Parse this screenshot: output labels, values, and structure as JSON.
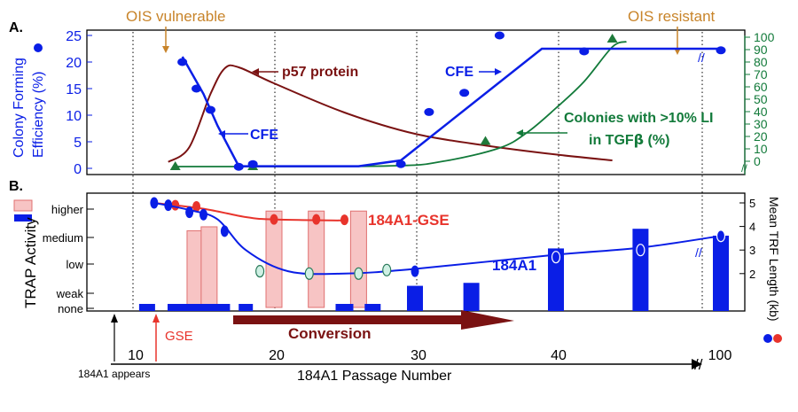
{
  "colors": {
    "blue": "#0a1ee6",
    "red": "#e8342c",
    "pink_fill": "#f7c4c4",
    "pink_edge": "#e07070",
    "dark_red": "#7a1212",
    "green": "#127a3a",
    "orange": "#c8842a",
    "pale_cyan": "#cff0e4",
    "marker_green": "#1e7a3a"
  },
  "x_axis": {
    "label": "184A1 Passage Number",
    "ticks": [
      "10",
      "20",
      "30",
      "40",
      "100"
    ],
    "break_mark": "//",
    "appears_label": "184A1 appears",
    "gse_label": "GSE",
    "conversion_label": "Conversion"
  },
  "annotations": {
    "ois_vulnerable": "OIS vulnerable",
    "ois_resistant": "OIS resistant"
  },
  "chart_data": [
    {
      "panel_label": "A.",
      "type": "line",
      "ylabel_line1": "Colony Forming",
      "ylabel_line2": "Efficiency (%)",
      "ylim": [
        0,
        25
      ],
      "y_ticks": [
        "0",
        "5",
        "10",
        "15",
        "20",
        "25"
      ],
      "y2_ticks": [
        "0",
        "10",
        "20",
        "30",
        "40",
        "50",
        "60",
        "70",
        "80",
        "90",
        "100"
      ],
      "y2lim": [
        0,
        100
      ],
      "labels": {
        "cfe_top": "CFE",
        "cfe_mid": "CFE",
        "p57": "p57 protein",
        "colonies_line1": "Colonies with >10% LI",
        "colonies_line2_prefix": "in TGF",
        "colonies_line2_beta": "β",
        "colonies_line2_suffix": " (%)"
      },
      "series": [
        {
          "name": "CFE",
          "color": "#0a1ee6",
          "line": [
            [
              13.5,
              21
            ],
            [
              15,
              14
            ],
            [
              16,
              8
            ],
            [
              17.5,
              0.4
            ],
            [
              26,
              0.4
            ],
            [
              29,
              1.5
            ],
            [
              39,
              22.5
            ],
            [
              42,
              22.5
            ],
            [
              100,
              22.5
            ]
          ],
          "points": [
            [
              13.5,
              20
            ],
            [
              14.5,
              15
            ],
            [
              15.5,
              11
            ],
            [
              17.5,
              0.3
            ],
            [
              18.5,
              0.8
            ],
            [
              29,
              0.8
            ],
            [
              31,
              10.6
            ],
            [
              33.5,
              14.2
            ],
            [
              36,
              25
            ],
            [
              42,
              22
            ],
            [
              100,
              22.2
            ]
          ]
        },
        {
          "name": "p57 protein",
          "color": "#7a1212",
          "line": [
            [
              12.5,
              1.2
            ],
            [
              14,
              4
            ],
            [
              15.5,
              14
            ],
            [
              16.5,
              18.8
            ],
            [
              17.5,
              19
            ],
            [
              20,
              16
            ],
            [
              25,
              10.5
            ],
            [
              30,
              6.5
            ],
            [
              35,
              4.3
            ],
            [
              40,
              2.6
            ],
            [
              44,
              1.5
            ]
          ]
        },
        {
          "name": "Colonies with >10% LI in TGFβ (%)",
          "color": "#127a3a",
          "axis": "right",
          "line": [
            [
              13,
              0
            ],
            [
              28,
              0.5
            ],
            [
              32,
              4
            ],
            [
              36,
              14
            ],
            [
              38,
              26
            ],
            [
              40,
              44
            ],
            [
              42,
              64
            ],
            [
              44,
              90
            ],
            [
              45,
              94
            ]
          ],
          "points": [
            [
              13,
              0
            ],
            [
              18.5,
              0
            ],
            [
              35,
              19
            ],
            [
              44,
              96
            ]
          ]
        }
      ]
    },
    {
      "panel_label": "B.",
      "type": "bar",
      "ylabel": "TRAP Activity",
      "y_categories": [
        "higher",
        "medium",
        "low",
        "weak",
        "none"
      ],
      "y2label": "Mean TRF Length (kb)",
      "y2_ticks": [
        "2",
        "3",
        "4",
        "5"
      ],
      "y2lim": [
        1.5,
        5.2
      ],
      "labels": {
        "gse": "184A1-GSE",
        "a1": "184A1"
      },
      "series": [
        {
          "name": "184A1-GSE",
          "type": "bar",
          "color": "#f7c4c4",
          "bars": [
            [
              14.4,
              0.78
            ],
            [
              15.4,
              0.82
            ],
            [
              20,
              0.98
            ],
            [
              23,
              0.98
            ],
            [
              26,
              0.98
            ]
          ]
        },
        {
          "name": "184A1",
          "type": "bar",
          "color": "#0a1ee6",
          "bars": [
            [
              11,
              0.02
            ],
            [
              14,
              0.02
            ],
            [
              16,
              0.02
            ],
            [
              18,
              0.02
            ],
            [
              25,
              0.02
            ],
            [
              27,
              0.02
            ],
            [
              30,
              0.22
            ],
            [
              34,
              0.25
            ],
            [
              40,
              0.6
            ],
            [
              46,
              0.8
            ],
            [
              100,
              0.73
            ]
          ]
        },
        {
          "name": "184A1-GSE TRF",
          "type": "line",
          "color": "#e8342c",
          "line": [
            [
              11.5,
              5
            ],
            [
              15,
              4.75
            ],
            [
              18,
              4.4
            ],
            [
              20,
              4.3
            ],
            [
              25,
              4.25
            ]
          ],
          "points": [
            [
              13,
              4.9
            ],
            [
              14.5,
              4.85
            ],
            [
              20,
              4.3
            ],
            [
              23,
              4.3
            ],
            [
              25,
              4.28
            ]
          ]
        },
        {
          "name": "184A1 TRF",
          "type": "line",
          "color": "#0a1ee6",
          "line": [
            [
              11.5,
              5
            ],
            [
              14,
              4.7
            ],
            [
              16,
              4.3
            ],
            [
              18,
              3
            ],
            [
              21,
              2.1
            ],
            [
              25,
              2
            ],
            [
              30,
              2.2
            ],
            [
              40,
              2.8
            ],
            [
              46,
              3.1
            ],
            [
              100,
              3.6
            ]
          ],
          "points": [
            [
              11.5,
              5
            ],
            [
              12.5,
              4.9
            ],
            [
              14,
              4.6
            ],
            [
              15,
              4.5
            ],
            [
              16.5,
              3.8
            ],
            [
              19,
              2.1
            ],
            [
              22.5,
              2
            ],
            [
              26,
              2
            ],
            [
              28,
              2.15
            ],
            [
              30,
              2.1
            ],
            [
              40,
              2.7
            ],
            [
              46,
              3
            ],
            [
              100,
              3.6
            ]
          ],
          "open_points": [
            [
              19,
              2.1
            ],
            [
              22.5,
              2
            ],
            [
              26,
              2
            ],
            [
              28,
              2.15
            ],
            [
              40,
              2.7
            ],
            [
              46,
              3
            ],
            [
              100,
              3.6
            ]
          ]
        }
      ]
    }
  ]
}
